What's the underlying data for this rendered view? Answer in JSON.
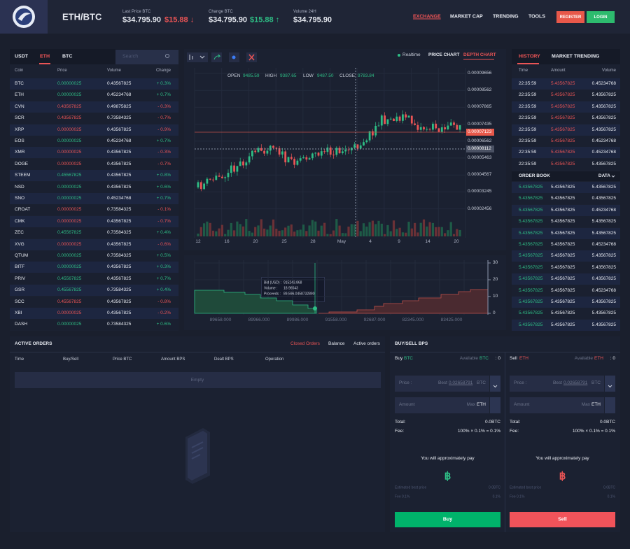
{
  "header": {
    "pair": "ETH/BTC",
    "stats": [
      {
        "label": "Last Price BTC",
        "value": "$34.795.90",
        "change": "$15.88 ↓"
      },
      {
        "label": "Change BTC",
        "value": "$34.795.90",
        "change": "$15.88 ↑"
      },
      {
        "label": "Volume 24H",
        "value": "$34.795.90"
      }
    ],
    "nav": [
      "EXCHANGE",
      "MARKET CAP",
      "TRENDING",
      "TOOLS"
    ],
    "register": "REGISTER",
    "login": "LOGIN"
  },
  "markets": {
    "tabs": [
      "USDT",
      "ETH",
      "BTC"
    ],
    "search": "Search",
    "columns": [
      "Coin",
      "Price",
      "Volume",
      "Change"
    ],
    "rows": [
      [
        "BTC",
        "0.00000025",
        "0.43567825",
        "+ 0.3%"
      ],
      [
        "ETH",
        "0.00000025",
        "0.45234768",
        "+ 0.7%"
      ],
      [
        "CVN",
        "0.43567825",
        "0.49875825",
        "- 0.3%"
      ],
      [
        "SCR",
        "0.43567825",
        "0.73584325",
        "- 0.7%"
      ],
      [
        "XRP",
        "0.00000025",
        "0.43567825",
        "- 0.9%"
      ],
      [
        "EOS",
        "0.00000025",
        "0.45234768",
        "+ 0.7%"
      ],
      [
        "XMR",
        "0.00000025",
        "0.43567825",
        "- 0.3%"
      ],
      [
        "DOGE",
        "0.00000025",
        "0.43567825",
        "- 0.7%"
      ],
      [
        "STEEM",
        "0.45567825",
        "0.43567825",
        "+ 0.8%"
      ],
      [
        "NSD",
        "0.00000025",
        "0.43567825",
        "+ 0.6%"
      ],
      [
        "SNO",
        "0.00000025",
        "0.45234768",
        "+ 0.7%"
      ],
      [
        "CROAT",
        "0.00000025",
        "0.73584325",
        "- 0.1%"
      ],
      [
        "CMK",
        "0.00000025",
        "0.43567825",
        "- 0.7%"
      ],
      [
        "ZEC",
        "0.45567825",
        "0.73584325",
        "+ 0.4%"
      ],
      [
        "XVG",
        "0.00000025",
        "0.43567825",
        "- 0.6%"
      ],
      [
        "QTUM",
        "0.00000025",
        "0.73584325",
        "+ 0.5%"
      ],
      [
        "BITF",
        "0.00000025",
        "0.43567825",
        "+ 0.3%"
      ],
      [
        "PRIV",
        "0.45567825",
        "0.43567825",
        "+ 0.7%"
      ],
      [
        "GSR",
        "0.45567825",
        "0.73584325",
        "+ 0.4%"
      ],
      [
        "SCC",
        "0.45567825",
        "0.43567825",
        "- 0.8%"
      ],
      [
        "XBI",
        "0.00000025",
        "0.43567825",
        "- 0.2%"
      ],
      [
        "DASH",
        "0.00000025",
        "0.73584325",
        "+ 0.6%"
      ]
    ]
  },
  "chart": {
    "realtime": "Realtime",
    "tabs": [
      "PRICE CHART",
      "DEPTH CHART"
    ],
    "ohlc": [
      [
        "OPEN",
        "9485.59"
      ],
      [
        "HIGH",
        "9387.65"
      ],
      [
        "LOW",
        "9487.50"
      ],
      [
        "CLOSE",
        "9783.84"
      ]
    ],
    "price_axis": [
      "0.00009656",
      "0.00008562",
      "0.00007865",
      "0.00007435",
      "0.00006562",
      "0.00005463",
      "0.00004567",
      "0.00003245",
      "0.00002456"
    ],
    "current_price": "0.00007123",
    "cursor_price": "0.00008112",
    "date_axis": [
      "12",
      "16",
      "20",
      "25",
      "28",
      "May",
      "4",
      "9",
      "14",
      "20"
    ]
  },
  "depth": {
    "y_axis": [
      "30",
      "20",
      "10",
      "0"
    ],
    "x_axis": [
      "89658.000",
      "89966.000",
      "89986.000",
      "91558.000",
      "92687.000",
      "82345.000",
      "83425.000"
    ],
    "tooltip": [
      [
        "Bid (USD) :",
        "915243.868"
      ],
      [
        "Volume :",
        "18.96543"
      ],
      [
        "Proceeds :",
        "89,596.0458732890"
      ]
    ]
  },
  "history": {
    "tabs": [
      "HISTORY",
      "MARKET TRENDING"
    ],
    "columns": [
      "Time",
      "Amount",
      "Volume"
    ],
    "rows": [
      [
        "22:35:59",
        "5.43567825",
        "0.45234768"
      ],
      [
        "22:35:59",
        "5.43567825",
        "5.43567825"
      ],
      [
        "22:35:59",
        "5.43567825",
        "5.43567825"
      ],
      [
        "22:35:59",
        "5.43567825",
        "5.43567825"
      ],
      [
        "22:35:59",
        "5.43567825",
        "5.43567825"
      ],
      [
        "22:35:59",
        "5.43567825",
        "0.45234768"
      ],
      [
        "22:35:59",
        "5.43567825",
        "0.45234768"
      ],
      [
        "22:35:59",
        "5.43567825",
        "5.43567825"
      ]
    ]
  },
  "order_book": {
    "title": "ORDER BOOK",
    "data": "DATA",
    "rows": [
      [
        "5.43567825",
        "5.43567825",
        "5.43567825"
      ],
      [
        "5.43567825",
        "5.43567825",
        "0.43567825"
      ],
      [
        "5.43567825",
        "5.43567825",
        "0.45234768"
      ],
      [
        "5.43567825",
        "5.43567825",
        "5.43567825"
      ],
      [
        "5.43567825",
        "5.43567825",
        "5.43567825"
      ],
      [
        "5.43567825",
        "5.43567825",
        "0.45234768"
      ],
      [
        "5.43567825",
        "5.43567825",
        "5.43567825"
      ],
      [
        "5.43567825",
        "5.43567825",
        "5.43567825"
      ],
      [
        "5.43567825",
        "5.43567825",
        "0.43567825"
      ],
      [
        "5.43567825",
        "5.43567825",
        "0.45234768"
      ],
      [
        "5.43567825",
        "5.43567825",
        "5.43567825"
      ],
      [
        "5.43567825",
        "5.43567825",
        "5.43567825"
      ],
      [
        "5.43567825",
        "5.43567825",
        "5.43567825"
      ]
    ]
  },
  "active_orders": {
    "title": "ACTIVE ORDERS",
    "tabs": [
      "Closed Orders",
      "Balance",
      "Active orders"
    ],
    "columns": [
      "Time",
      "Buy/Sell",
      "Price BTC",
      "Amount BPS",
      "Dealt BPS",
      "Operation"
    ],
    "empty": "Empty"
  },
  "buy_sell": {
    "title": "BUY/SELL BPS",
    "forms": [
      {
        "side": "Buy",
        "currency": "BTC",
        "available": "Available",
        "available_currency": "BTC",
        "available_value": ":  0",
        "price": "Price :",
        "best": "Best",
        "best_value": "0.02658791",
        "best_unit": "BTC",
        "amount": "Amount",
        "max": "Max",
        "max_unit": "ETH",
        "total": "Total:",
        "total_value": "0.0BTC",
        "fee": "Fee:",
        "fee_value": "100% × 0.1% = 0.1%",
        "pay": "You will approximately pay",
        "symbol": "฿",
        "est": "Estimated best price",
        "est_value": "0.0BTC",
        "fee_pct": "Fee 0.1%",
        "fee_pct_value": "0.1%",
        "button": "Buy"
      },
      {
        "side": "Sell",
        "currency": "ETH",
        "available": "Available",
        "available_currency": "ETH",
        "available_value": ":  0",
        "price": "Price :",
        "best": "Best",
        "best_value": "0.02658791",
        "best_unit": "BTC",
        "amount": "Amount",
        "max": "Max",
        "max_unit": "ETH",
        "total": "Total:",
        "total_value": "0.0BTC",
        "fee": "Fee:",
        "fee_value": "100% × 0.1% = 0.1%",
        "pay": "You will approximately pay",
        "symbol": "฿",
        "est": "Estimated best price",
        "est_value": "0.0BTC",
        "fee_pct": "Fee 0.1%",
        "fee_pct_value": "0.1%",
        "button": "Sell"
      }
    ]
  }
}
